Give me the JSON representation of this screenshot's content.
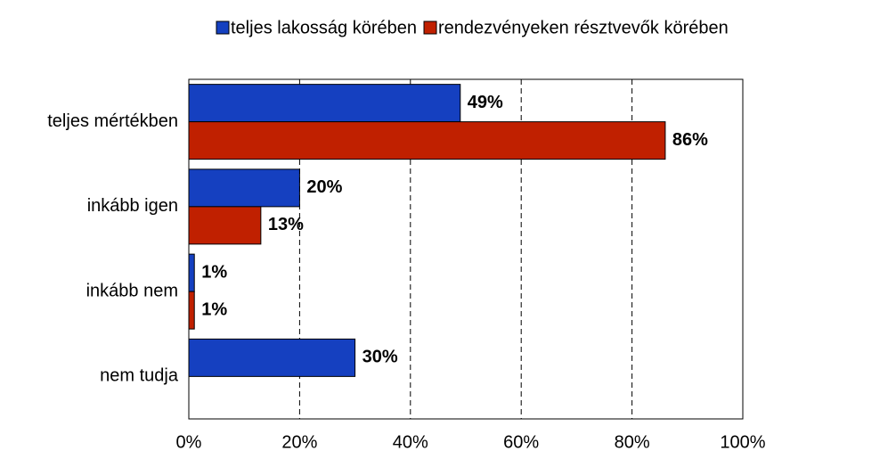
{
  "chart_data": {
    "type": "hbar",
    "categories": [
      "teljes mértékben",
      "inkább igen",
      "inkább nem",
      "nem tudja"
    ],
    "series": [
      {
        "name": "teljes lakosság körében",
        "color": "#1540c0",
        "values": [
          49,
          20,
          1,
          30
        ],
        "value_labels": [
          "49%",
          "20%",
          "1%",
          "30%"
        ]
      },
      {
        "name": "rendezvényeken résztvevők körében",
        "color": "#c02000",
        "values": [
          86,
          13,
          1,
          null
        ],
        "value_labels": [
          "86%",
          "13%",
          "1%",
          null
        ]
      }
    ],
    "xlim": [
      0,
      100
    ],
    "xticks": [
      {
        "value": 0,
        "label": "0%"
      },
      {
        "value": 20,
        "label": "20%"
      },
      {
        "value": 40,
        "label": "40%"
      },
      {
        "value": 60,
        "label": "60%"
      },
      {
        "value": 80,
        "label": "80%"
      },
      {
        "value": 100,
        "label": "100%"
      }
    ],
    "grid": true,
    "legend": "top"
  }
}
